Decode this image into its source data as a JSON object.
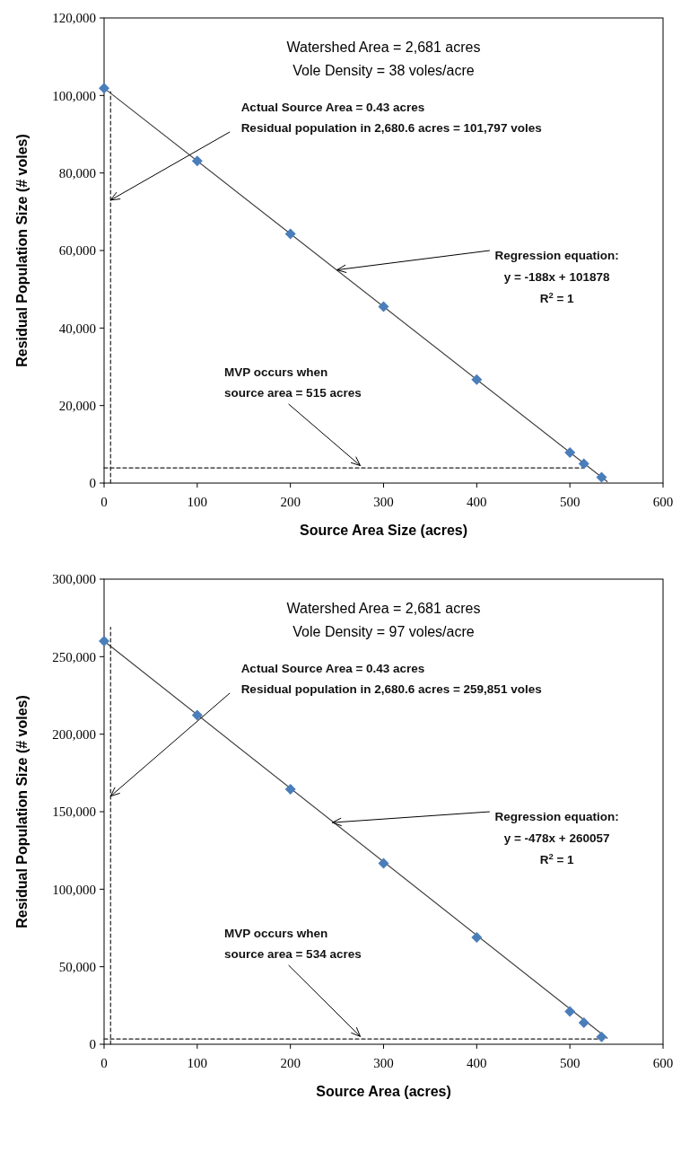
{
  "chart_data": [
    {
      "type": "scatter",
      "title": "Watershed Area = 2,681 acres",
      "subtitle": "Vole Density = 38 voles/acre",
      "xlabel": "Source Area Size (acres)",
      "ylabel": "Residual Population Size (# voles)",
      "xlim": [
        0,
        600
      ],
      "xticks": [
        0,
        100,
        200,
        300,
        400,
        500,
        600
      ],
      "ylim": [
        0,
        120000
      ],
      "yticks": [
        {
          "value": 0,
          "label": "0"
        },
        {
          "value": 20000,
          "label": "20,000"
        },
        {
          "value": 40000,
          "label": "40,000"
        },
        {
          "value": 60000,
          "label": "60,000"
        },
        {
          "value": 80000,
          "label": "80,000"
        },
        {
          "value": 100000,
          "label": "100,000"
        },
        {
          "value": 120000,
          "label": "120,000"
        }
      ],
      "grid": false,
      "series": [
        {
          "type": "scatter",
          "marker": "diamond",
          "color": "#4a7ebb",
          "x": [
            0,
            100,
            200,
            300,
            400,
            500,
            515,
            534
          ],
          "values": [
            101900,
            83100,
            64300,
            45500,
            26700,
            7900,
            5000,
            1500
          ]
        },
        {
          "type": "line",
          "marker": "none",
          "line_style": "solid",
          "color": "#404040",
          "x": [
            0,
            540
          ],
          "values": [
            101900,
            400
          ]
        },
        {
          "type": "line",
          "marker": "none",
          "line_style": "dashed",
          "color": "#202020",
          "x": [
            0,
            515
          ],
          "values": [
            3900,
            3900
          ]
        },
        {
          "type": "line",
          "marker": "none",
          "line_style": "dashed",
          "color": "#202020",
          "x": [
            7,
            7
          ],
          "values": [
            0,
            101000
          ]
        }
      ],
      "annotations": [
        {
          "text": "Actual Source Area = 0.43 acres\nResidual population in  2,680.6 acres = 101,797 voles",
          "x": 7,
          "y": 73000
        },
        {
          "text": "Regression equation:\ny = -188x + 101878\nR$^{2}$ = 1",
          "x": 250,
          "y": 55000
        },
        {
          "text": "MVP occurs when\nsource area = 515 acres",
          "x": 275,
          "y": 4500
        }
      ]
    },
    {
      "type": "scatter",
      "title": "Watershed Area = 2,681 acres",
      "subtitle": "Vole Density = 97 voles/acre",
      "xlabel": "Source Area (acres)",
      "ylabel": "Residual Population Size (# voles)",
      "xlim": [
        0,
        600
      ],
      "xticks": [
        0,
        100,
        200,
        300,
        400,
        500,
        600
      ],
      "ylim": [
        0,
        300000
      ],
      "yticks": [
        {
          "value": 0,
          "label": "0"
        },
        {
          "value": 50000,
          "label": "50,000"
        },
        {
          "value": 100000,
          "label": "100,000"
        },
        {
          "value": 150000,
          "label": "150,000"
        },
        {
          "value": 200000,
          "label": "200,000"
        },
        {
          "value": 250000,
          "label": "250,000"
        },
        {
          "value": 300000,
          "label": "300,000"
        }
      ],
      "grid": false,
      "series": [
        {
          "type": "scatter",
          "marker": "diamond",
          "color": "#4a7ebb",
          "x": [
            0,
            100,
            200,
            300,
            400,
            500,
            515,
            534
          ],
          "values": [
            260000,
            212300,
            164500,
            116700,
            68900,
            21100,
            13900,
            4800
          ]
        },
        {
          "type": "line",
          "marker": "none",
          "line_style": "solid",
          "color": "#404040",
          "x": [
            0,
            540
          ],
          "values": [
            260000,
            3900
          ]
        },
        {
          "type": "line",
          "marker": "none",
          "line_style": "dashed",
          "color": "#202020",
          "x": [
            0,
            534
          ],
          "values": [
            3400,
            3400
          ]
        },
        {
          "type": "line",
          "marker": "none",
          "line_style": "dashed",
          "color": "#202020",
          "x": [
            7,
            7
          ],
          "values": [
            0,
            269000
          ]
        }
      ],
      "annotations": [
        {
          "text": "Actual Source Area = 0.43 acres\nResidual population in 2,680.6 acres = 259,851 voles",
          "x": 7,
          "y": 160000
        },
        {
          "text": "Regression equation:\ny = -478x + 260057\nR$^{2}$ = 1",
          "x": 245,
          "y": 143000
        },
        {
          "text": "MVP occurs when\nsource area = 534 acres",
          "x": 275,
          "y": 5000
        }
      ]
    }
  ]
}
